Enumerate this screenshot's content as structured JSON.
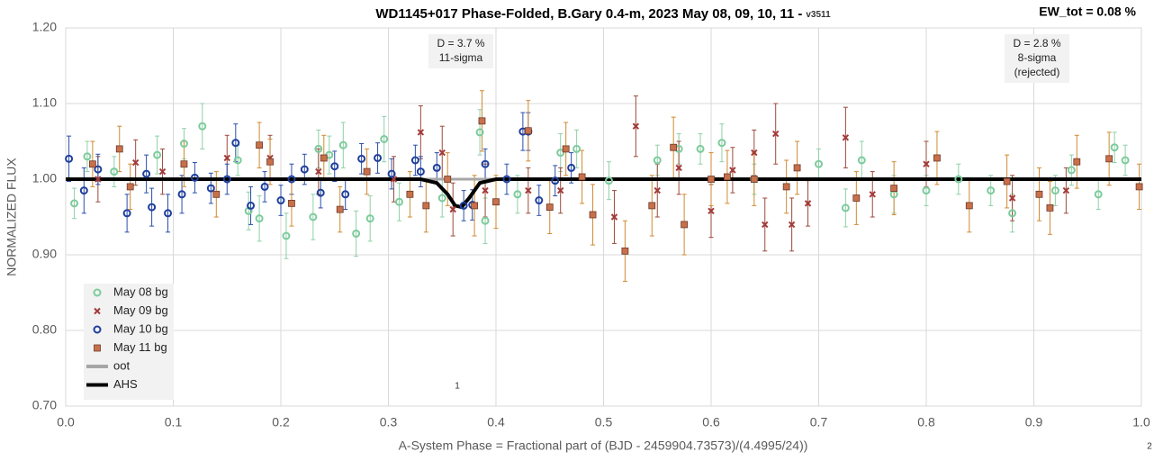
{
  "chart_data": {
    "type": "scatter",
    "title": "WD1145+017 Phase-Folded, B.Gary 0.4-m, 2023 May 08, 09, 10, 11 -",
    "title_suffix": "v3511",
    "corner_note": "EW_tot = 0.08 %",
    "annotations": [
      {
        "lines": [
          "D = 3.7 %",
          "11-sigma"
        ]
      },
      {
        "lines": [
          "D = 2.8 %",
          "8-sigma",
          "(rejected)"
        ]
      }
    ],
    "marks": [
      "1",
      "2"
    ],
    "x_label": "A-System Phase = Fractional part of (BJD - 2459904.73573)/(4.4995/24))",
    "y_label": "NORMALIZED FLUX",
    "xlim": [
      0,
      1
    ],
    "ylim": [
      0.7,
      1.2
    ],
    "xticks": [
      {
        "value": 0,
        "label": "0.0"
      },
      0.1,
      0.2,
      0.3,
      0.4,
      0.5,
      0.6,
      0.7,
      0.8,
      0.9,
      {
        "value": 1,
        "label": "1.0"
      }
    ],
    "yticks": [
      {
        "value": 0.7,
        "label": "0.70"
      },
      {
        "value": 0.8,
        "label": "0.80"
      },
      {
        "value": 0.9,
        "label": "0.90"
      },
      {
        "value": 1.0,
        "label": "1.00"
      },
      {
        "value": 1.1,
        "label": "1.10"
      },
      {
        "value": 1.2,
        "label": "1.20"
      }
    ],
    "grid": true,
    "legend": "lower left",
    "series": [
      {
        "name": "May 08 bg",
        "marker": "circle",
        "color": "#7dcb9c",
        "error_color": "#8fd0a8",
        "x": [
          0.008,
          0.02,
          0.045,
          0.085,
          0.11,
          0.127,
          0.16,
          0.17,
          0.18,
          0.205,
          0.23,
          0.235,
          0.245,
          0.258,
          0.27,
          0.283,
          0.296,
          0.31,
          0.35,
          0.385,
          0.39,
          0.42,
          0.46,
          0.475,
          0.505,
          0.55,
          0.57,
          0.59,
          0.61,
          0.64,
          0.7,
          0.725,
          0.74,
          0.77,
          0.8,
          0.83,
          0.86,
          0.88,
          0.92,
          0.935,
          0.96,
          0.975,
          0.985
        ],
        "values": [
          0.968,
          1.03,
          1.01,
          1.032,
          1.047,
          1.07,
          1.025,
          0.958,
          0.948,
          0.925,
          0.95,
          1.04,
          1.032,
          1.045,
          0.928,
          0.948,
          1.053,
          0.97,
          0.975,
          1.062,
          0.945,
          0.98,
          1.035,
          1.04,
          0.998,
          1.025,
          1.04,
          1.04,
          1.048,
          1.0,
          1.02,
          0.962,
          1.025,
          0.98,
          0.985,
          1.0,
          0.985,
          0.955,
          0.985,
          1.012,
          0.98,
          1.042,
          1.025
        ],
        "errors": [
          0.02,
          0.02,
          0.02,
          0.025,
          0.02,
          0.03,
          0.02,
          0.025,
          0.03,
          0.03,
          0.03,
          0.025,
          0.025,
          0.03,
          0.03,
          0.03,
          0.03,
          0.025,
          0.025,
          0.03,
          0.03,
          0.025,
          0.025,
          0.025,
          0.025,
          0.02,
          0.02,
          0.02,
          0.025,
          0.02,
          0.02,
          0.025,
          0.025,
          0.025,
          0.02,
          0.02,
          0.02,
          0.025,
          0.02,
          0.02,
          0.02,
          0.02,
          0.02
        ]
      },
      {
        "name": "May 09 bg",
        "marker": "x",
        "color": "#a33a3a",
        "error_color": "#9a4a3a",
        "x": [
          0.03,
          0.065,
          0.09,
          0.15,
          0.19,
          0.235,
          0.305,
          0.33,
          0.35,
          0.36,
          0.39,
          0.43,
          0.46,
          0.51,
          0.53,
          0.55,
          0.57,
          0.6,
          0.62,
          0.64,
          0.65,
          0.66,
          0.675,
          0.69,
          0.725,
          0.75,
          0.8,
          0.88,
          0.93
        ],
        "values": [
          1.0,
          1.022,
          1.01,
          1.028,
          1.028,
          1.01,
          1.0,
          1.062,
          1.035,
          0.96,
          0.985,
          0.985,
          0.985,
          0.95,
          1.07,
          0.985,
          1.015,
          0.958,
          1.012,
          1.035,
          0.94,
          1.06,
          0.94,
          0.968,
          1.055,
          0.98,
          1.02,
          0.975,
          0.985
        ],
        "errors": [
          0.03,
          0.03,
          0.03,
          0.03,
          0.03,
          0.03,
          0.03,
          0.035,
          0.035,
          0.035,
          0.035,
          0.03,
          0.03,
          0.035,
          0.04,
          0.035,
          0.035,
          0.035,
          0.03,
          0.03,
          0.035,
          0.04,
          0.035,
          0.03,
          0.04,
          0.03,
          0.03,
          0.03,
          0.03
        ]
      },
      {
        "name": "May 10 bg",
        "marker": "circle",
        "color": "#1f3f9c",
        "error_color": "#2a4fa8",
        "x": [
          0.003,
          0.017,
          0.03,
          0.057,
          0.075,
          0.08,
          0.095,
          0.108,
          0.12,
          0.135,
          0.15,
          0.158,
          0.172,
          0.185,
          0.2,
          0.21,
          0.222,
          0.237,
          0.25,
          0.26,
          0.275,
          0.29,
          0.303,
          0.325,
          0.33,
          0.345,
          0.37,
          0.378,
          0.39,
          0.41,
          0.425,
          0.43,
          0.44,
          0.455,
          0.47
        ],
        "values": [
          1.027,
          0.985,
          1.013,
          0.955,
          1.007,
          0.963,
          0.955,
          0.98,
          1.002,
          0.988,
          1.0,
          1.048,
          0.965,
          0.99,
          0.972,
          1.0,
          1.013,
          0.982,
          1.017,
          0.98,
          1.027,
          1.028,
          1.007,
          1.025,
          1.01,
          1.015,
          0.965,
          0.966,
          1.02,
          1.0,
          1.063,
          1.063,
          0.972,
          0.998,
          1.015
        ],
        "errors": [
          0.03,
          0.03,
          0.02,
          0.025,
          0.025,
          0.025,
          0.025,
          0.025,
          0.02,
          0.02,
          0.02,
          0.025,
          0.025,
          0.02,
          0.02,
          0.02,
          0.02,
          0.02,
          0.02,
          0.02,
          0.02,
          0.02,
          0.02,
          0.02,
          0.02,
          0.02,
          0.02,
          0.02,
          0.02,
          0.02,
          0.025,
          0.025,
          0.02,
          0.02,
          0.02
        ]
      },
      {
        "name": "May 11 bg",
        "marker": "square",
        "color": "#c8704a",
        "error_color": "#d08a30",
        "x": [
          0.025,
          0.05,
          0.06,
          0.11,
          0.14,
          0.18,
          0.19,
          0.21,
          0.24,
          0.255,
          0.28,
          0.32,
          0.335,
          0.355,
          0.38,
          0.387,
          0.4,
          0.43,
          0.45,
          0.465,
          0.48,
          0.49,
          0.52,
          0.545,
          0.565,
          0.575,
          0.6,
          0.615,
          0.64,
          0.67,
          0.68,
          0.735,
          0.77,
          0.81,
          0.84,
          0.875,
          0.905,
          0.915,
          0.94,
          0.97,
          0.998
        ],
        "values": [
          1.02,
          1.04,
          0.99,
          1.02,
          0.98,
          1.045,
          1.023,
          0.968,
          1.028,
          0.96,
          1.01,
          0.98,
          0.965,
          1.0,
          0.965,
          1.077,
          0.97,
          1.064,
          0.963,
          1.04,
          1.003,
          0.953,
          0.905,
          0.965,
          1.042,
          0.94,
          1.0,
          1.003,
          1.0,
          0.99,
          1.015,
          0.975,
          0.988,
          1.028,
          0.965,
          0.997,
          0.98,
          0.962,
          1.023,
          1.027,
          0.99
        ],
        "errors": [
          0.03,
          0.03,
          0.03,
          0.03,
          0.03,
          0.03,
          0.03,
          0.03,
          0.03,
          0.03,
          0.03,
          0.03,
          0.035,
          0.035,
          0.04,
          0.04,
          0.035,
          0.04,
          0.035,
          0.035,
          0.035,
          0.04,
          0.04,
          0.04,
          0.04,
          0.04,
          0.035,
          0.035,
          0.035,
          0.035,
          0.035,
          0.035,
          0.035,
          0.035,
          0.035,
          0.035,
          0.035,
          0.035,
          0.035,
          0.035,
          0.03
        ]
      },
      {
        "name": "oot",
        "marker": "line",
        "color": "#a6a6a6",
        "x": [
          0,
          1
        ],
        "values": [
          1.0,
          1.0
        ]
      },
      {
        "name": "AHS",
        "marker": "line",
        "color": "#000000",
        "x": [
          0,
          0.33,
          0.345,
          0.355,
          0.362,
          0.368,
          0.375,
          0.385,
          0.4,
          1
        ],
        "values": [
          1.0,
          1.0,
          0.995,
          0.98,
          0.965,
          0.963,
          0.975,
          0.995,
          1.0,
          1.0
        ]
      }
    ]
  }
}
